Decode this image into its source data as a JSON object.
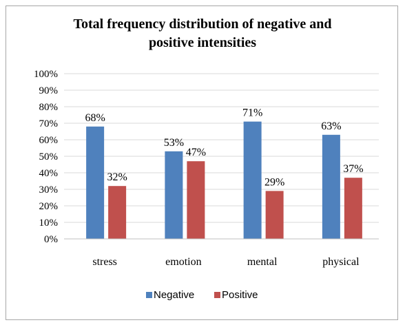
{
  "chart_data": {
    "type": "bar",
    "title": "Total frequency distribution of negative and\npositive intensities",
    "categories": [
      "stress",
      "emotion",
      "mental",
      "physical"
    ],
    "series": [
      {
        "name": "Negative",
        "color": "#4f81bd",
        "values": [
          68,
          53,
          71,
          63
        ],
        "labels": [
          "68%",
          "53%",
          "71%",
          "63%"
        ]
      },
      {
        "name": "Positive",
        "color": "#c0504d",
        "values": [
          32,
          47,
          29,
          37
        ],
        "labels": [
          "32%",
          "47%",
          "29%",
          "37%"
        ]
      }
    ],
    "ylim": [
      0,
      100
    ],
    "yticks": [
      "0%",
      "10%",
      "20%",
      "30%",
      "40%",
      "50%",
      "60%",
      "70%",
      "80%",
      "90%",
      "100%"
    ],
    "grid": true,
    "legend": "bottom"
  }
}
